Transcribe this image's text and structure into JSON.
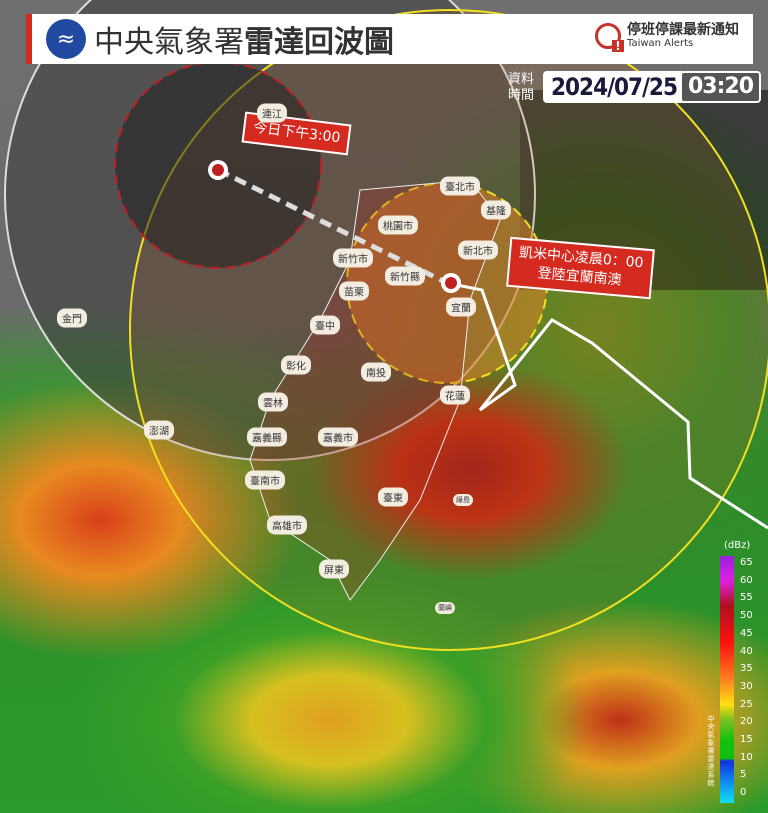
{
  "header": {
    "agency": "中央氣象署",
    "title": "雷達回波圖",
    "alerts_title": "停班停課最新通知",
    "alerts_subtitle": "Taiwan Alerts"
  },
  "timestamp": {
    "label": "資料時間",
    "date": "2024/07/25",
    "time": "03:20"
  },
  "callouts": {
    "forecast": "今日下午3:00",
    "landfall_line1": "凱米中心凌晨0：00",
    "landfall_line2": "登陸宜蘭南澳"
  },
  "places": [
    {
      "name": "連江"
    },
    {
      "name": "臺北市"
    },
    {
      "name": "基隆"
    },
    {
      "name": "桃園市"
    },
    {
      "name": "新北市"
    },
    {
      "name": "新竹市"
    },
    {
      "name": "新竹縣"
    },
    {
      "name": "苗栗"
    },
    {
      "name": "宜蘭"
    },
    {
      "name": "金門"
    },
    {
      "name": "臺中"
    },
    {
      "name": "彰化"
    },
    {
      "name": "南投"
    },
    {
      "name": "花蓮"
    },
    {
      "name": "雲林"
    },
    {
      "name": "澎湖"
    },
    {
      "name": "嘉義縣"
    },
    {
      "name": "嘉義市"
    },
    {
      "name": "臺南市"
    },
    {
      "name": "臺東"
    },
    {
      "name": "綠島"
    },
    {
      "name": "高雄市"
    },
    {
      "name": "屏東"
    },
    {
      "name": "蘭嶼"
    }
  ],
  "legend": {
    "unit": "(dBz)",
    "ticks": [
      "65",
      "60",
      "55",
      "50",
      "45",
      "40",
      "35",
      "30",
      "25",
      "20",
      "15",
      "10",
      "5",
      "0"
    ],
    "system": "中央氣象署雷達系統"
  },
  "colors": {
    "accent": "#d42a20",
    "storm_radius": "#f0e020",
    "track": "#ffffff"
  }
}
